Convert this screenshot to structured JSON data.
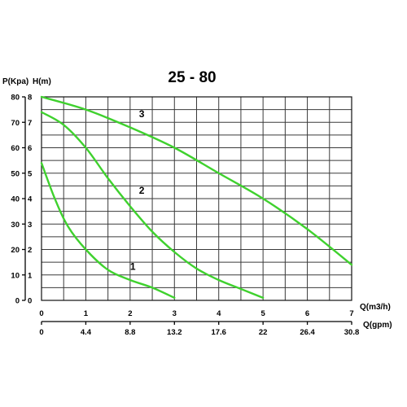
{
  "chart_data": {
    "type": "line",
    "title": "25 - 80",
    "y_axis_labels": {
      "pressure": "P(Kpa)",
      "head": "H(m)"
    },
    "x_axis_labels": {
      "flow_m3h": "Q(m3/h)",
      "flow_gpm": "Q(gpm)"
    },
    "xlim": [
      0,
      7
    ],
    "ylim": [
      0,
      80
    ],
    "pressure_ticks": [
      "0",
      "10",
      "20",
      "30",
      "40",
      "50",
      "60",
      "70",
      "80"
    ],
    "head_ticks": [
      "0",
      "1",
      "2",
      "3",
      "4",
      "5",
      "6",
      "7",
      "8"
    ],
    "m3h_ticks": [
      "0",
      "1",
      "2",
      "3",
      "4",
      "5",
      "6",
      "7"
    ],
    "gpm_ticks": [
      "0",
      "4.4",
      "8.8",
      "13.2",
      "17.6",
      "22",
      "26.4",
      "30.8"
    ],
    "grid": true,
    "curve_color": "#3fd12e",
    "series": [
      {
        "name": "1",
        "label_at": [
          2,
          12
        ],
        "points": [
          [
            0,
            54
          ],
          [
            0.3,
            40
          ],
          [
            0.6,
            29
          ],
          [
            1,
            20
          ],
          [
            1.5,
            12
          ],
          [
            2,
            8
          ],
          [
            2.5,
            5
          ],
          [
            3,
            1
          ]
        ]
      },
      {
        "name": "2",
        "label_at": [
          2.2,
          42
        ],
        "points": [
          [
            0,
            74
          ],
          [
            0.5,
            69
          ],
          [
            1,
            60
          ],
          [
            1.5,
            48
          ],
          [
            2,
            37
          ],
          [
            2.5,
            27
          ],
          [
            3,
            19
          ],
          [
            3.5,
            12.5
          ],
          [
            4,
            8
          ],
          [
            4.5,
            4.5
          ],
          [
            5,
            1
          ]
        ]
      },
      {
        "name": "3",
        "label_at": [
          2.2,
          72
        ],
        "points": [
          [
            0,
            80
          ],
          [
            1,
            75
          ],
          [
            2,
            68
          ],
          [
            3,
            60
          ],
          [
            4,
            50
          ],
          [
            5,
            40
          ],
          [
            6,
            28
          ],
          [
            7,
            14
          ]
        ]
      }
    ]
  }
}
